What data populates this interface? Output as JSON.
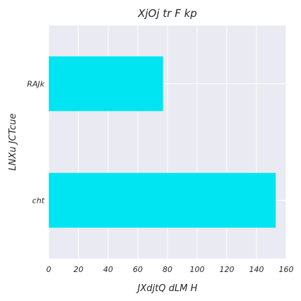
{
  "chart_data": {
    "type": "bar",
    "orientation": "horizontal",
    "title": "XjOj tr  F kp",
    "xlabel": "JXdjtQ dLM H",
    "ylabel": "LNXu JCTcue",
    "categories": [
      "RAJk",
      "cht"
    ],
    "values": [
      77,
      153
    ],
    "xlim": [
      0,
      160
    ],
    "xticks": [
      0,
      20,
      40,
      60,
      80,
      100,
      120,
      140,
      160
    ],
    "grid": true,
    "bar_color": "#00e5f2",
    "background_color": "#eaeaf2"
  }
}
